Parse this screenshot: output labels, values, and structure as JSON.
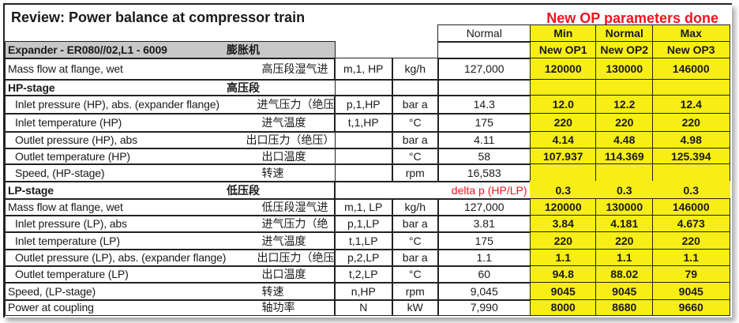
{
  "title": "Review: Power balance at compressor train",
  "status_note": "New OP parameters done",
  "colors": {
    "highlight": "#f7ee16",
    "note": "#f0141e",
    "section": "#c8c8c8"
  },
  "header": {
    "normal": "Normal",
    "ops": [
      "Min",
      "Normal",
      "Max"
    ],
    "op_names": [
      "New OP1",
      "New OP2",
      "New OP3"
    ],
    "expander": "Expander - ER080//02,L1 - 6009",
    "expander_cn": "膨胀机"
  },
  "rows": [
    {
      "label": "Mass flow at flange, wet",
      "cn": "高压段湿气进",
      "symbol": "m,1, HP",
      "unit": "kg/h",
      "normal": "127,000",
      "op": [
        "120000",
        "130000",
        "146000"
      ]
    },
    {
      "label": "HP-stage",
      "cn": "高压段",
      "section": true,
      "symbol": "",
      "unit": "",
      "normal": "",
      "op": [
        "",
        "",
        ""
      ]
    },
    {
      "label": "Inlet  pressure (HP), abs. (expander flange)",
      "cn": "进气压力（绝压",
      "indent": true,
      "symbol": "p,1,HP",
      "unit": "bar a",
      "normal": "14.3",
      "op": [
        "12.0",
        "12.2",
        "12.4"
      ]
    },
    {
      "label": "Inlet  temperature (HP)",
      "cn": "进气温度",
      "indent": true,
      "symbol": "t,1,HP",
      "unit": "°C",
      "normal": "175",
      "op": [
        "220",
        "220",
        "220"
      ]
    },
    {
      "label": "Outlet pressure (HP), abs",
      "cn": "出口压力（绝压）",
      "indent": true,
      "symbol": "",
      "unit": "bar a",
      "normal": "4.11",
      "op": [
        "4.14",
        "4.48",
        "4.98"
      ]
    },
    {
      "label": "Outlet temperature (HP)",
      "cn": "出口温度",
      "indent": true,
      "symbol": "",
      "unit": "°C",
      "normal": "58",
      "op": [
        "107.937",
        "114.369",
        "125.394"
      ]
    },
    {
      "label": "Speed, (HP-stage)",
      "cn": "转速",
      "indent": true,
      "symbol": "",
      "unit": "rpm",
      "normal": "16,583",
      "op": [
        "",
        "",
        ""
      ]
    },
    {
      "label": "LP-stage",
      "cn": "低压段",
      "section": true,
      "note": "delta p (HP/LP)",
      "op": [
        "0.3",
        "0.3",
        "0.3"
      ]
    },
    {
      "label": "Mass flow at flange, wet",
      "cn": "低压段湿气进",
      "symbol": "m,1, LP",
      "unit": "kg/h",
      "normal": "127,000",
      "op": [
        "120000",
        "130000",
        "146000"
      ]
    },
    {
      "label": "Inlet pressure (LP), abs",
      "cn": "进气压力（绝",
      "indent": true,
      "symbol": "p,1,LP",
      "unit": "bar a",
      "normal": "3.81",
      "op": [
        "3.84",
        "4.181",
        "4.673"
      ]
    },
    {
      "label": "Inlet  temperature (LP)",
      "cn": "进气温度",
      "indent": true,
      "symbol": "t,1,LP",
      "unit": "°C",
      "normal": "175",
      "op": [
        "220",
        "220",
        "220"
      ]
    },
    {
      "label": "Outlet pressure (LP), abs. (expander flange)",
      "cn": "出口压力（绝压",
      "indent": true,
      "symbol": "p,2,LP",
      "unit": "bar a",
      "normal": "1.1",
      "op": [
        "1.1",
        "1.1",
        "1.1"
      ]
    },
    {
      "label": "Outlet temperature (LP)",
      "cn": "出口温度",
      "indent": true,
      "symbol": "t,2,LP",
      "unit": "°C",
      "normal": "60",
      "op": [
        "94.8",
        "88.02",
        "79"
      ]
    },
    {
      "label": "Speed, (LP-stage)",
      "cn": "转速",
      "symbol": "n,HP",
      "unit": "rpm",
      "normal": "9,045",
      "op": [
        "9045",
        "9045",
        "9045"
      ]
    },
    {
      "label": "Power at coupling",
      "cn": "轴功率",
      "symbol": "N",
      "unit": "kW",
      "normal": "7,990",
      "op": [
        "8000",
        "8680",
        "9660"
      ]
    }
  ]
}
